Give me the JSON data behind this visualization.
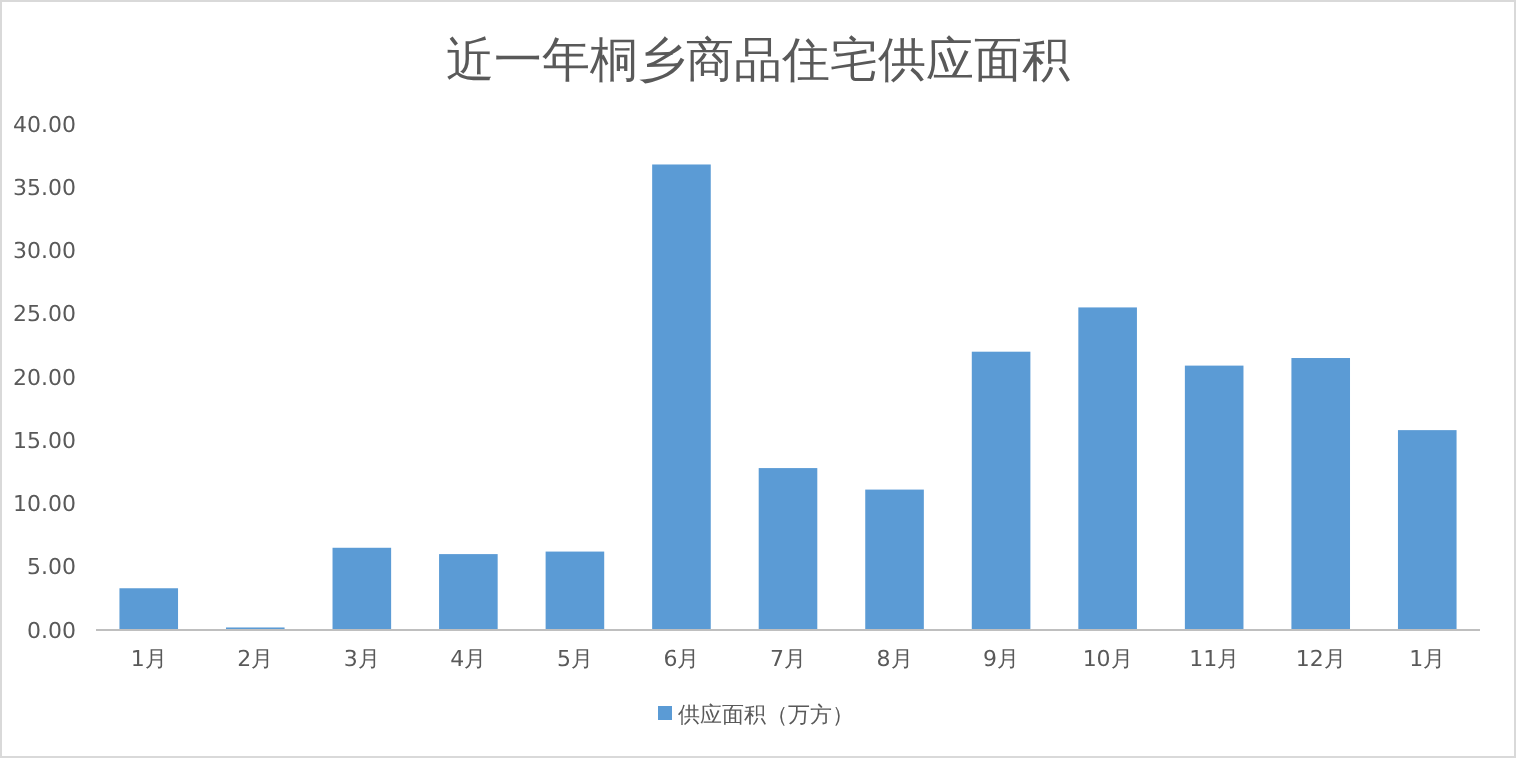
{
  "chart_data": {
    "type": "bar",
    "title": "近一年桐乡商品住宅供应面积",
    "categories": [
      "1月",
      "2月",
      "3月",
      "4月",
      "5月",
      "6月",
      "7月",
      "8月",
      "9月",
      "10月",
      "11月",
      "12月",
      "1月"
    ],
    "series": [
      {
        "name": "供应面积（万方）",
        "color": "#5b9bd5",
        "values": [
          3.3,
          0.2,
          6.5,
          6.0,
          6.2,
          36.8,
          12.8,
          11.1,
          22.0,
          25.5,
          20.9,
          21.5,
          15.8
        ]
      }
    ],
    "ylim": [
      0,
      40
    ],
    "yticks": [
      {
        "value": 0,
        "label": "0.00"
      },
      {
        "value": 5,
        "label": "5.00"
      },
      {
        "value": 10,
        "label": "10.00"
      },
      {
        "value": 15,
        "label": "15.00"
      },
      {
        "value": 20,
        "label": "20.00"
      },
      {
        "value": 25,
        "label": "25.00"
      },
      {
        "value": 30,
        "label": "30.00"
      },
      {
        "value": 35,
        "label": "35.00"
      },
      {
        "value": 40,
        "label": "40.00"
      }
    ],
    "grid": false,
    "legend": "bottom"
  }
}
